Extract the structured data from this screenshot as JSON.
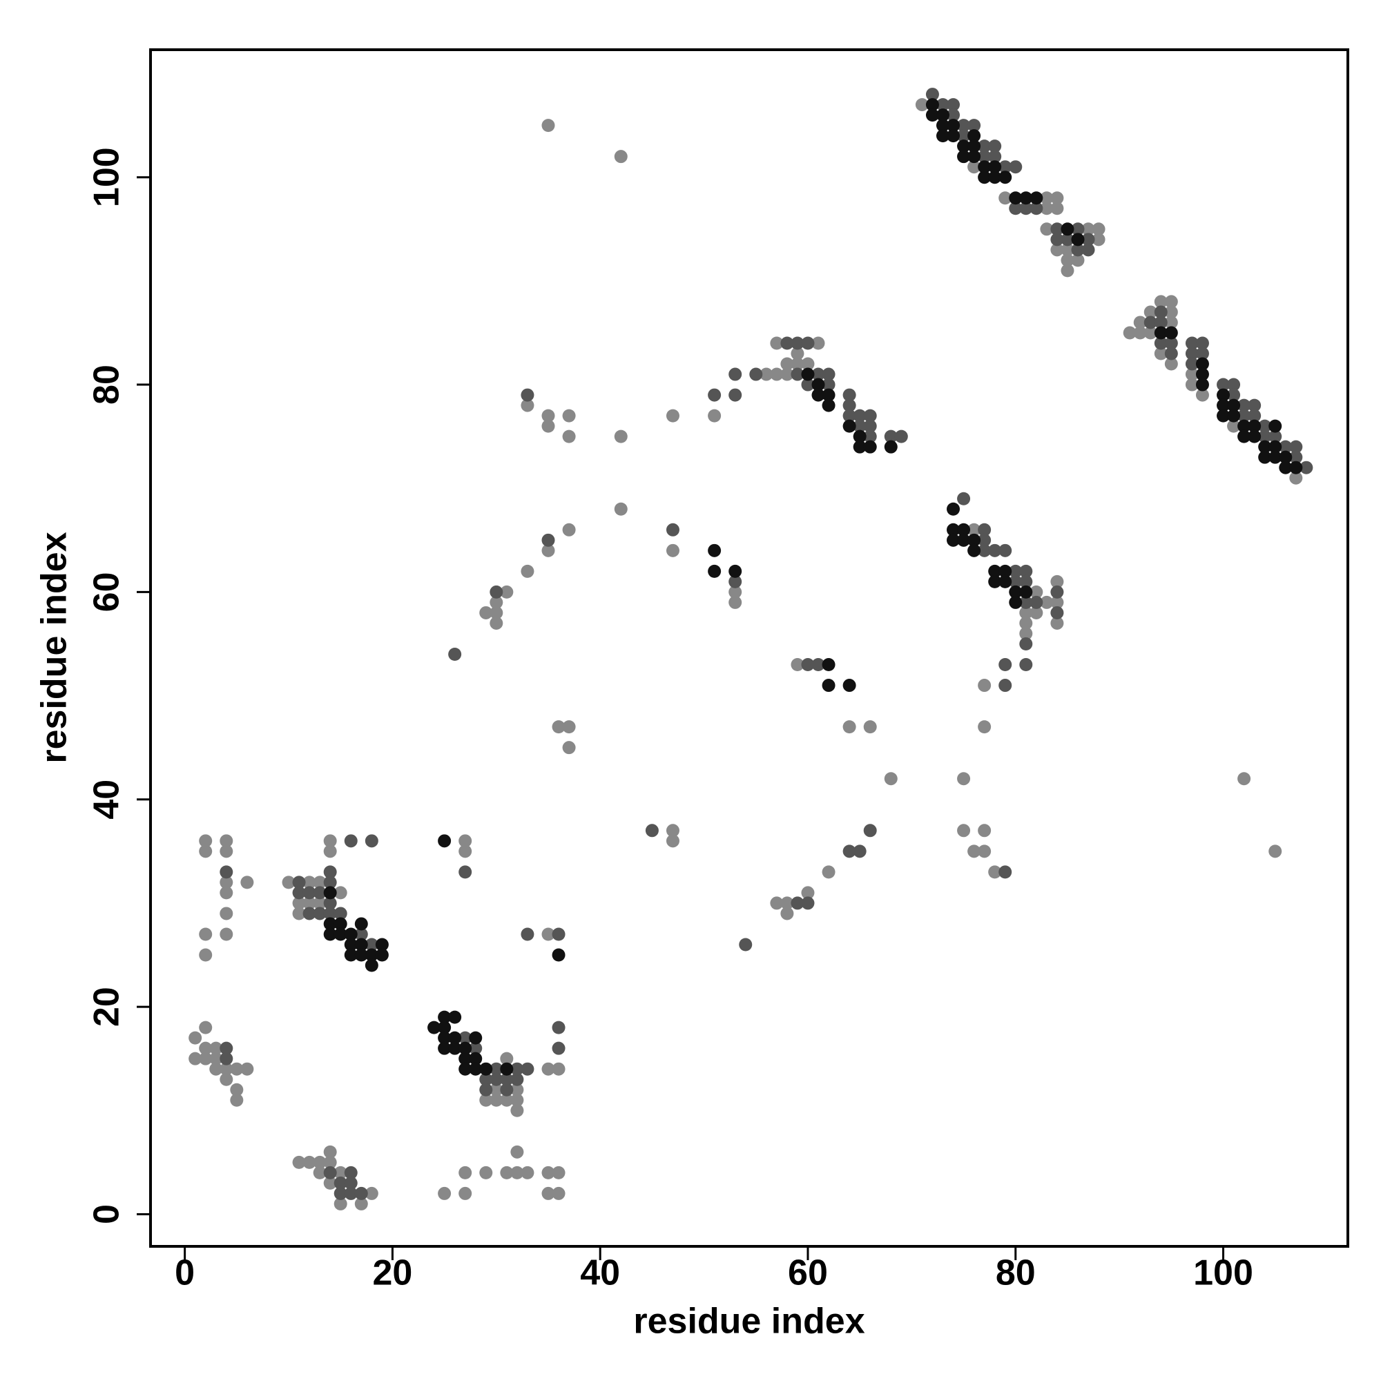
{
  "chart_data": {
    "type": "scatter",
    "x_label": "residue index",
    "y_label": "residue index",
    "xlim": [
      -3.3,
      112
    ],
    "ylim": [
      -3.1,
      112.3
    ],
    "xticks": [
      0,
      20,
      40,
      60,
      80,
      100
    ],
    "yticks": [
      0,
      20,
      40,
      60,
      80,
      100
    ],
    "grid": false,
    "series": [
      {
        "color": "#888888",
        "x": [
          71,
          76,
          79,
          83,
          84,
          83,
          84,
          83,
          87,
          88,
          88,
          84,
          85,
          85,
          86,
          85,
          91,
          92,
          92,
          93,
          93,
          94,
          94,
          95,
          95,
          95,
          95,
          97,
          97,
          98,
          101,
          107,
          57,
          57,
          56,
          58,
          58,
          59,
          59,
          60,
          61,
          76,
          81,
          81,
          81,
          82,
          82,
          83,
          84,
          84,
          84,
          35,
          42,
          33,
          35,
          35,
          37,
          37,
          42,
          47,
          51,
          42,
          37,
          35,
          47,
          53,
          53,
          33,
          31,
          30,
          30,
          29,
          30,
          59,
          77,
          36,
          37,
          37,
          64,
          66,
          77,
          68,
          75,
          102,
          47,
          47,
          75,
          77,
          76,
          77,
          78,
          105,
          60,
          57,
          58,
          58,
          62,
          2,
          2,
          4,
          4,
          4,
          4,
          6,
          4,
          2,
          4,
          2,
          10,
          11,
          11,
          12,
          12,
          13,
          13,
          14,
          14,
          15,
          27,
          27,
          35,
          29,
          30,
          30,
          31,
          31,
          32,
          32,
          32,
          35,
          36,
          1,
          1,
          2,
          2,
          2,
          3,
          3,
          3,
          4,
          4,
          5,
          5,
          5,
          6,
          11,
          12,
          13,
          13,
          14,
          14,
          14,
          15,
          15,
          17,
          18,
          25,
          27,
          27,
          29,
          31,
          32,
          32,
          33,
          35,
          35,
          36,
          36
        ],
        "values": [
          107,
          101,
          98,
          98,
          98,
          97,
          97,
          95,
          95,
          95,
          94,
          93,
          93,
          92,
          92,
          91,
          85,
          86,
          85,
          87,
          85,
          88,
          83,
          88,
          87,
          86,
          82,
          81,
          80,
          79,
          76,
          71,
          84,
          81,
          81,
          82,
          81,
          83,
          82,
          82,
          84,
          66,
          58,
          57,
          56,
          60,
          58,
          59,
          61,
          59,
          57,
          105,
          102,
          78,
          77,
          76,
          77,
          75,
          75,
          77,
          77,
          68,
          66,
          64,
          64,
          60,
          59,
          62,
          60,
          59,
          58,
          58,
          57,
          53,
          51,
          47,
          47,
          45,
          47,
          47,
          47,
          42,
          42,
          42,
          37,
          36,
          37,
          37,
          35,
          35,
          33,
          35,
          31,
          30,
          30,
          29,
          33,
          36,
          35,
          36,
          35,
          32,
          31,
          32,
          29,
          27,
          27,
          25,
          32,
          30,
          29,
          32,
          30,
          32,
          30,
          36,
          35,
          31,
          36,
          35,
          27,
          11,
          12,
          11,
          15,
          11,
          12,
          11,
          10,
          14,
          14,
          17,
          15,
          18,
          16,
          15,
          16,
          15,
          14,
          14,
          13,
          14,
          12,
          11,
          14,
          5,
          5,
          5,
          4,
          6,
          5,
          3,
          4,
          1,
          1,
          2,
          2,
          4,
          2,
          4,
          4,
          6,
          4,
          4,
          4,
          2,
          4,
          2
        ]
      },
      {
        "color": "#555555",
        "x": [
          72,
          73,
          74,
          74,
          75,
          75,
          76,
          77,
          77,
          78,
          78,
          79,
          80,
          80,
          81,
          82,
          84,
          84,
          85,
          86,
          87,
          86,
          87,
          93,
          94,
          94,
          94,
          95,
          95,
          97,
          97,
          97,
          98,
          98,
          100,
          101,
          101,
          102,
          102,
          103,
          103,
          104,
          104,
          105,
          106,
          107,
          107,
          108,
          53,
          53,
          51,
          55,
          58,
          59,
          60,
          61,
          62,
          62,
          64,
          64,
          64,
          65,
          65,
          66,
          66,
          66,
          68,
          69,
          59,
          60,
          75,
          77,
          77,
          77,
          78,
          79,
          80,
          80,
          81,
          81,
          81,
          81,
          82,
          84,
          84,
          79,
          81,
          79,
          35,
          33,
          47,
          53,
          26,
          30,
          60,
          61,
          64,
          65,
          66,
          60,
          59,
          54,
          79,
          45,
          11,
          11,
          12,
          13,
          12,
          13,
          14,
          14,
          14,
          14,
          15,
          16,
          18,
          17,
          18,
          27,
          33,
          36,
          36,
          36,
          27,
          28,
          29,
          29,
          30,
          30,
          31,
          31,
          32,
          32,
          33,
          4,
          4,
          4,
          15,
          15,
          16,
          16,
          16,
          17,
          14
        ],
        "values": [
          108,
          107,
          107,
          106,
          105,
          104,
          105,
          103,
          102,
          103,
          102,
          101,
          101,
          97,
          97,
          97,
          95,
          94,
          94,
          95,
          94,
          93,
          93,
          86,
          87,
          86,
          84,
          84,
          83,
          84,
          83,
          82,
          84,
          83,
          80,
          80,
          79,
          78,
          77,
          78,
          77,
          76,
          75,
          75,
          74,
          74,
          73,
          72,
          81,
          79,
          79,
          81,
          84,
          84,
          84,
          81,
          81,
          80,
          79,
          78,
          77,
          77,
          76,
          77,
          76,
          75,
          75,
          75,
          81,
          80,
          69,
          66,
          65,
          64,
          64,
          64,
          62,
          61,
          62,
          61,
          59,
          55,
          59,
          60,
          58,
          53,
          53,
          51,
          65,
          79,
          66,
          61,
          54,
          60,
          53,
          53,
          35,
          35,
          37,
          30,
          30,
          26,
          33,
          37,
          32,
          31,
          31,
          31,
          29,
          29,
          33,
          32,
          30,
          29,
          29,
          36,
          36,
          27,
          26,
          33,
          27,
          27,
          16,
          18,
          17,
          16,
          13,
          12,
          14,
          13,
          13,
          12,
          13,
          14,
          14,
          16,
          15,
          33,
          3,
          2,
          4,
          3,
          2,
          2,
          4
        ]
      },
      {
        "color": "#111111",
        "x": [
          72,
          72,
          73,
          73,
          73,
          74,
          74,
          75,
          75,
          76,
          76,
          76,
          77,
          77,
          78,
          78,
          79,
          80,
          81,
          82,
          86,
          85,
          94,
          95,
          98,
          98,
          98,
          100,
          100,
          100,
          101,
          101,
          102,
          102,
          103,
          103,
          104,
          104,
          105,
          105,
          105,
          106,
          106,
          107,
          60,
          61,
          61,
          62,
          62,
          64,
          65,
          65,
          66,
          68,
          74,
          74,
          75,
          75,
          76,
          76,
          78,
          78,
          79,
          79,
          80,
          80,
          81,
          74,
          51,
          51,
          53,
          62,
          62,
          64,
          14,
          14,
          14,
          15,
          15,
          16,
          16,
          16,
          17,
          17,
          17,
          18,
          18,
          19,
          19,
          25,
          36,
          24,
          25,
          25,
          25,
          25,
          26,
          26,
          26,
          27,
          27,
          27,
          28,
          28,
          28,
          29,
          31
        ],
        "values": [
          107,
          106,
          106,
          105,
          104,
          105,
          104,
          103,
          102,
          104,
          103,
          102,
          101,
          100,
          101,
          100,
          100,
          98,
          98,
          98,
          94,
          95,
          85,
          85,
          82,
          81,
          80,
          79,
          78,
          77,
          78,
          77,
          76,
          75,
          76,
          75,
          74,
          73,
          76,
          74,
          73,
          73,
          72,
          72,
          81,
          80,
          79,
          79,
          78,
          76,
          75,
          74,
          74,
          74,
          66,
          65,
          66,
          65,
          65,
          64,
          62,
          61,
          62,
          61,
          60,
          59,
          60,
          68,
          64,
          62,
          62,
          53,
          51,
          51,
          31,
          28,
          27,
          28,
          27,
          27,
          26,
          25,
          28,
          26,
          25,
          25,
          24,
          26,
          25,
          36,
          25,
          18,
          19,
          18,
          17,
          16,
          19,
          17,
          16,
          16,
          15,
          14,
          17,
          15,
          14,
          14,
          14
        ]
      }
    ]
  }
}
